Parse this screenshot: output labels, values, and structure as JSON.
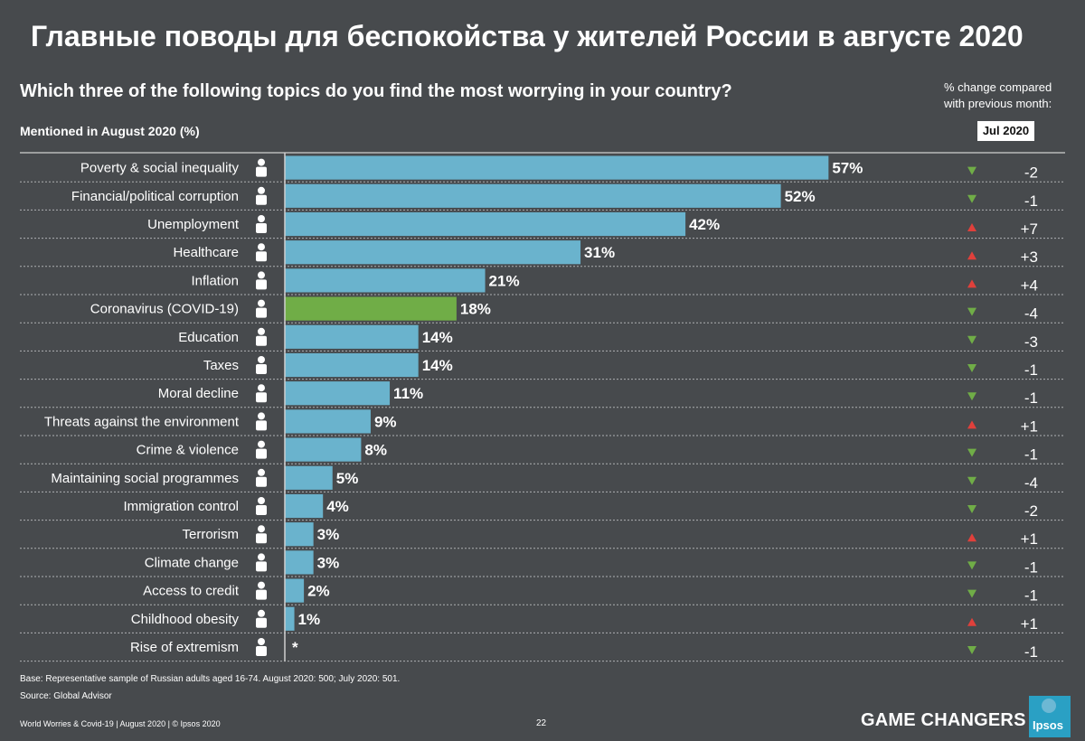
{
  "header": {
    "title": "Главные поводы для беспокойства у жителей России в августе 2020",
    "question": "Which three of the following topics do you find the most worrying in your country?",
    "change_label_line1": "% change compared",
    "change_label_line2": "with previous month:",
    "mentioned_label": "Mentioned in August 2020 (%)",
    "compare_month": "Jul 2020"
  },
  "colors": {
    "background": "#474a4d",
    "bar": "#6ab3cd",
    "bar_highlight": "#70ad47",
    "up": "#e0403b",
    "down": "#70ad47"
  },
  "chart_data": {
    "type": "bar",
    "orientation": "horizontal",
    "title": "Mentioned in August 2020 (%)",
    "categories": [
      "Poverty & social inequality",
      "Financial/political corruption",
      "Unemployment",
      "Healthcare",
      "Inflation",
      "Coronavirus (COVID-19)",
      "Education",
      "Taxes",
      "Moral decline",
      "Threats against the environment",
      "Crime & violence",
      "Maintaining social programmes",
      "Immigration control",
      "Terrorism",
      "Climate change",
      "Access to credit",
      "Childhood obesity",
      "Rise of extremism"
    ],
    "values": [
      57,
      52,
      42,
      31,
      21,
      18,
      14,
      14,
      11,
      9,
      8,
      5,
      4,
      3,
      3,
      2,
      1,
      0
    ],
    "value_labels": [
      "57%",
      "52%",
      "42%",
      "31%",
      "21%",
      "18%",
      "14%",
      "14%",
      "11%",
      "9%",
      "8%",
      "5%",
      "4%",
      "3%",
      "3%",
      "2%",
      "1%",
      "*"
    ],
    "highlight": [
      false,
      false,
      false,
      false,
      false,
      true,
      false,
      false,
      false,
      false,
      false,
      false,
      false,
      false,
      false,
      false,
      false,
      false
    ],
    "change_vs_jul_2020": [
      "-2",
      "-1",
      "+7",
      "+3",
      "+4",
      "-4",
      "-3",
      "-1",
      "-1",
      "+1",
      "-1",
      "-4",
      "-2",
      "+1",
      "-1",
      "-1",
      "+1",
      "-1"
    ],
    "change_direction": [
      "down",
      "down",
      "up",
      "up",
      "up",
      "down",
      "down",
      "down",
      "down",
      "up",
      "down",
      "down",
      "down",
      "up",
      "down",
      "down",
      "up",
      "down"
    ],
    "icons": [
      "poverty-icon",
      "corruption-icon",
      "unemployment-icon",
      "healthcare-icon",
      "inflation-icon",
      "biohazard-icon",
      "education-icon",
      "taxes-icon",
      "moral-decline-icon",
      "environment-icon",
      "crime-icon",
      "social-programmes-icon",
      "immigration-icon",
      "terrorism-icon",
      "climate-icon",
      "credit-icon",
      "obesity-icon",
      "extremism-icon"
    ],
    "xlim": [
      0,
      60
    ]
  },
  "footer": {
    "base": "Base: Representative sample of Russian adults aged 16-74. August 2020: 500; July 2020: 501.",
    "source": "Source: Global Advisor",
    "note": "World Worries & Covid-19 | August 2020 | © Ipsos 2020",
    "page": "22",
    "brand": "GAME CHANGERS",
    "logo": "Ipsos"
  }
}
